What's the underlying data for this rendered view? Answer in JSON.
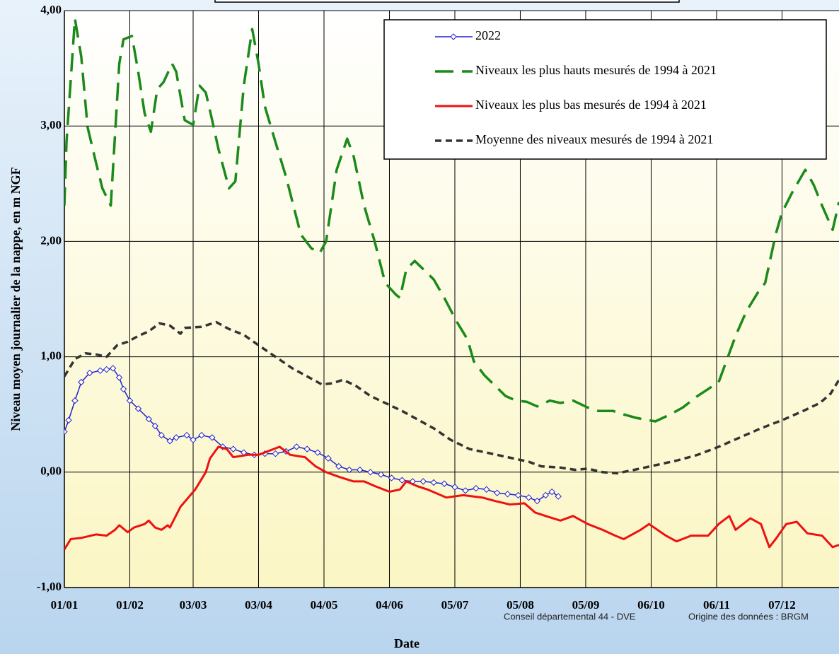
{
  "chart_data": {
    "type": "line",
    "xlabel": "Date",
    "ylabel": "Niveau moyen journalier de la nappe, en m NGF",
    "footer": [
      "Conseil départemental  44 - DVE",
      "Origine des données : BRGM"
    ],
    "xlim": [
      0,
      367
    ],
    "xticks": [
      {
        "value": 0,
        "label": "01/01"
      },
      {
        "value": 31,
        "label": "01/02"
      },
      {
        "value": 61,
        "label": "03/03"
      },
      {
        "value": 92,
        "label": "03/04"
      },
      {
        "value": 123,
        "label": "04/05"
      },
      {
        "value": 154,
        "label": "04/06"
      },
      {
        "value": 185,
        "label": "05/07"
      },
      {
        "value": 216,
        "label": "05/08"
      },
      {
        "value": 247,
        "label": "05/09"
      },
      {
        "value": 278,
        "label": "06/10"
      },
      {
        "value": 309,
        "label": "06/11"
      },
      {
        "value": 340,
        "label": "07/12"
      }
    ],
    "ylim": [
      -1,
      4
    ],
    "yticks": [
      {
        "value": -1,
        "label": "-1,00"
      },
      {
        "value": 0,
        "label": "0,00"
      },
      {
        "value": 1,
        "label": "1,00"
      },
      {
        "value": 2,
        "label": "2,00"
      },
      {
        "value": 3,
        "label": "3,00"
      },
      {
        "value": 4,
        "label": "4,00"
      }
    ],
    "grid": true,
    "legend": "upper right",
    "series": [
      {
        "name": "2022",
        "color": "#2222cc",
        "style": "solid",
        "marker": "diamond",
        "x": [
          0,
          2,
          5,
          8,
          12,
          17,
          20,
          23,
          26,
          28,
          31,
          35,
          40,
          43,
          46,
          50,
          53,
          58,
          61,
          65,
          70,
          75,
          80,
          85,
          90,
          95,
          100,
          105,
          110,
          115,
          120,
          125,
          130,
          135,
          140,
          145,
          150,
          155,
          160,
          165,
          170,
          175,
          180,
          185,
          190,
          195,
          200,
          205,
          210,
          215,
          220,
          224,
          228,
          231,
          234
        ],
        "values": [
          0.35,
          0.45,
          0.62,
          0.78,
          0.86,
          0.88,
          0.89,
          0.9,
          0.82,
          0.72,
          0.62,
          0.55,
          0.46,
          0.4,
          0.32,
          0.27,
          0.3,
          0.32,
          0.28,
          0.32,
          0.3,
          0.22,
          0.2,
          0.17,
          0.15,
          0.16,
          0.16,
          0.18,
          0.22,
          0.2,
          0.17,
          0.12,
          0.05,
          0.02,
          0.02,
          0,
          -0.02,
          -0.05,
          -0.07,
          -0.08,
          -0.08,
          -0.09,
          -0.1,
          -0.13,
          -0.16,
          -0.14,
          -0.15,
          -0.18,
          -0.19,
          -0.2,
          -0.22,
          -0.25,
          -0.2,
          -0.17,
          -0.21
        ]
      },
      {
        "name": "Niveaux les plus hauts mesurés de 1994 à 2021",
        "color": "#1a8a1a",
        "style": "dashed",
        "x": [
          0,
          1,
          5,
          8,
          11,
          15,
          18,
          22,
          26,
          28,
          32,
          35,
          38,
          41,
          44,
          47,
          51,
          53,
          57,
          61,
          64,
          67,
          70,
          73,
          78,
          81,
          85,
          89,
          92,
          95,
          100,
          105,
          112,
          117,
          121,
          124,
          129,
          134,
          137,
          142,
          147,
          152,
          157,
          159,
          162,
          166,
          170,
          175,
          180,
          186,
          191,
          194,
          199,
          204,
          209,
          214,
          219,
          224,
          230,
          235,
          241,
          248,
          253,
          260,
          265,
          271,
          280,
          287,
          293,
          300,
          305,
          310,
          313,
          318,
          323,
          329,
          332,
          337,
          340,
          345,
          351,
          355,
          359,
          364,
          367
        ],
        "values": [
          2.31,
          2.86,
          3.93,
          3.6,
          2.99,
          2.68,
          2.46,
          2.31,
          3.54,
          3.75,
          3.78,
          3.47,
          3.11,
          2.95,
          3.32,
          3.38,
          3.54,
          3.47,
          3.05,
          3.01,
          3.35,
          3.29,
          3.05,
          2.8,
          2.46,
          2.52,
          3.35,
          3.84,
          3.54,
          3.17,
          2.86,
          2.56,
          2.06,
          1.94,
          1.9,
          2.0,
          2.62,
          2.89,
          2.74,
          2.31,
          2.0,
          1.64,
          1.54,
          1.51,
          1.76,
          1.83,
          1.76,
          1.67,
          1.51,
          1.3,
          1.15,
          0.96,
          0.84,
          0.75,
          0.66,
          0.62,
          0.61,
          0.57,
          0.62,
          0.6,
          0.62,
          0.56,
          0.53,
          0.53,
          0.5,
          0.47,
          0.44,
          0.5,
          0.56,
          0.66,
          0.72,
          0.78,
          0.93,
          1.18,
          1.39,
          1.57,
          1.64,
          2.06,
          2.25,
          2.43,
          2.62,
          2.49,
          2.31,
          2.1,
          2.34
        ]
      },
      {
        "name": "Niveaux les plus bas mesurés de 1994 à 2021",
        "color": "#ee1111",
        "style": "solid",
        "x": [
          0,
          3,
          8,
          15,
          20,
          24,
          26,
          30,
          33,
          38,
          40,
          43,
          46,
          49,
          50,
          55,
          62,
          67,
          69,
          73,
          77,
          80,
          87,
          92,
          102,
          107,
          114,
          119,
          124,
          130,
          137,
          142,
          147,
          154,
          159,
          162,
          167,
          172,
          181,
          189,
          198,
          204,
          211,
          218,
          223,
          228,
          235,
          241,
          248,
          255,
          261,
          265,
          273,
          277,
          285,
          290,
          297,
          305,
          310,
          315,
          318,
          325,
          330,
          334,
          337,
          342,
          347,
          352,
          359,
          364,
          367
        ],
        "values": [
          -0.67,
          -0.58,
          -0.57,
          -0.54,
          -0.55,
          -0.5,
          -0.46,
          -0.52,
          -0.48,
          -0.45,
          -0.42,
          -0.48,
          -0.5,
          -0.46,
          -0.48,
          -0.3,
          -0.15,
          0,
          0.12,
          0.22,
          0.2,
          0.13,
          0.15,
          0.15,
          0.22,
          0.15,
          0.13,
          0.05,
          0,
          -0.04,
          -0.08,
          -0.08,
          -0.12,
          -0.17,
          -0.15,
          -0.08,
          -0.12,
          -0.15,
          -0.22,
          -0.2,
          -0.22,
          -0.25,
          -0.28,
          -0.27,
          -0.35,
          -0.38,
          -0.42,
          -0.38,
          -0.45,
          -0.5,
          -0.55,
          -0.58,
          -0.5,
          -0.45,
          -0.55,
          -0.6,
          -0.55,
          -0.55,
          -0.45,
          -0.38,
          -0.5,
          -0.4,
          -0.45,
          -0.65,
          -0.58,
          -0.45,
          -0.43,
          -0.53,
          -0.55,
          -0.65,
          -0.63
        ]
      },
      {
        "name": "Moyenne des niveaux mesurés de 1994 à 2021",
        "color": "#333333",
        "style": "dotted",
        "x": [
          0,
          5,
          10,
          15,
          20,
          25,
          30,
          35,
          40,
          45,
          50,
          55,
          57,
          65,
          72,
          78,
          85,
          92,
          100,
          108,
          115,
          122,
          127,
          132,
          138,
          145,
          152,
          160,
          168,
          175,
          183,
          192,
          200,
          210,
          220,
          226,
          235,
          242,
          248,
          255,
          262,
          270,
          280,
          290,
          300,
          310,
          320,
          330,
          340,
          350,
          358,
          363,
          367
        ],
        "values": [
          0.83,
          0.98,
          1.03,
          1.02,
          1.0,
          1.1,
          1.13,
          1.18,
          1.22,
          1.29,
          1.27,
          1.2,
          1.25,
          1.26,
          1.3,
          1.24,
          1.19,
          1.1,
          1.0,
          0.9,
          0.83,
          0.76,
          0.77,
          0.8,
          0.75,
          0.66,
          0.6,
          0.53,
          0.45,
          0.38,
          0.28,
          0.2,
          0.17,
          0.13,
          0.09,
          0.05,
          0.04,
          0.02,
          0.03,
          0,
          -0.01,
          0.02,
          0.06,
          0.1,
          0.15,
          0.22,
          0.3,
          0.38,
          0.45,
          0.53,
          0.6,
          0.68,
          0.8
        ]
      }
    ]
  }
}
